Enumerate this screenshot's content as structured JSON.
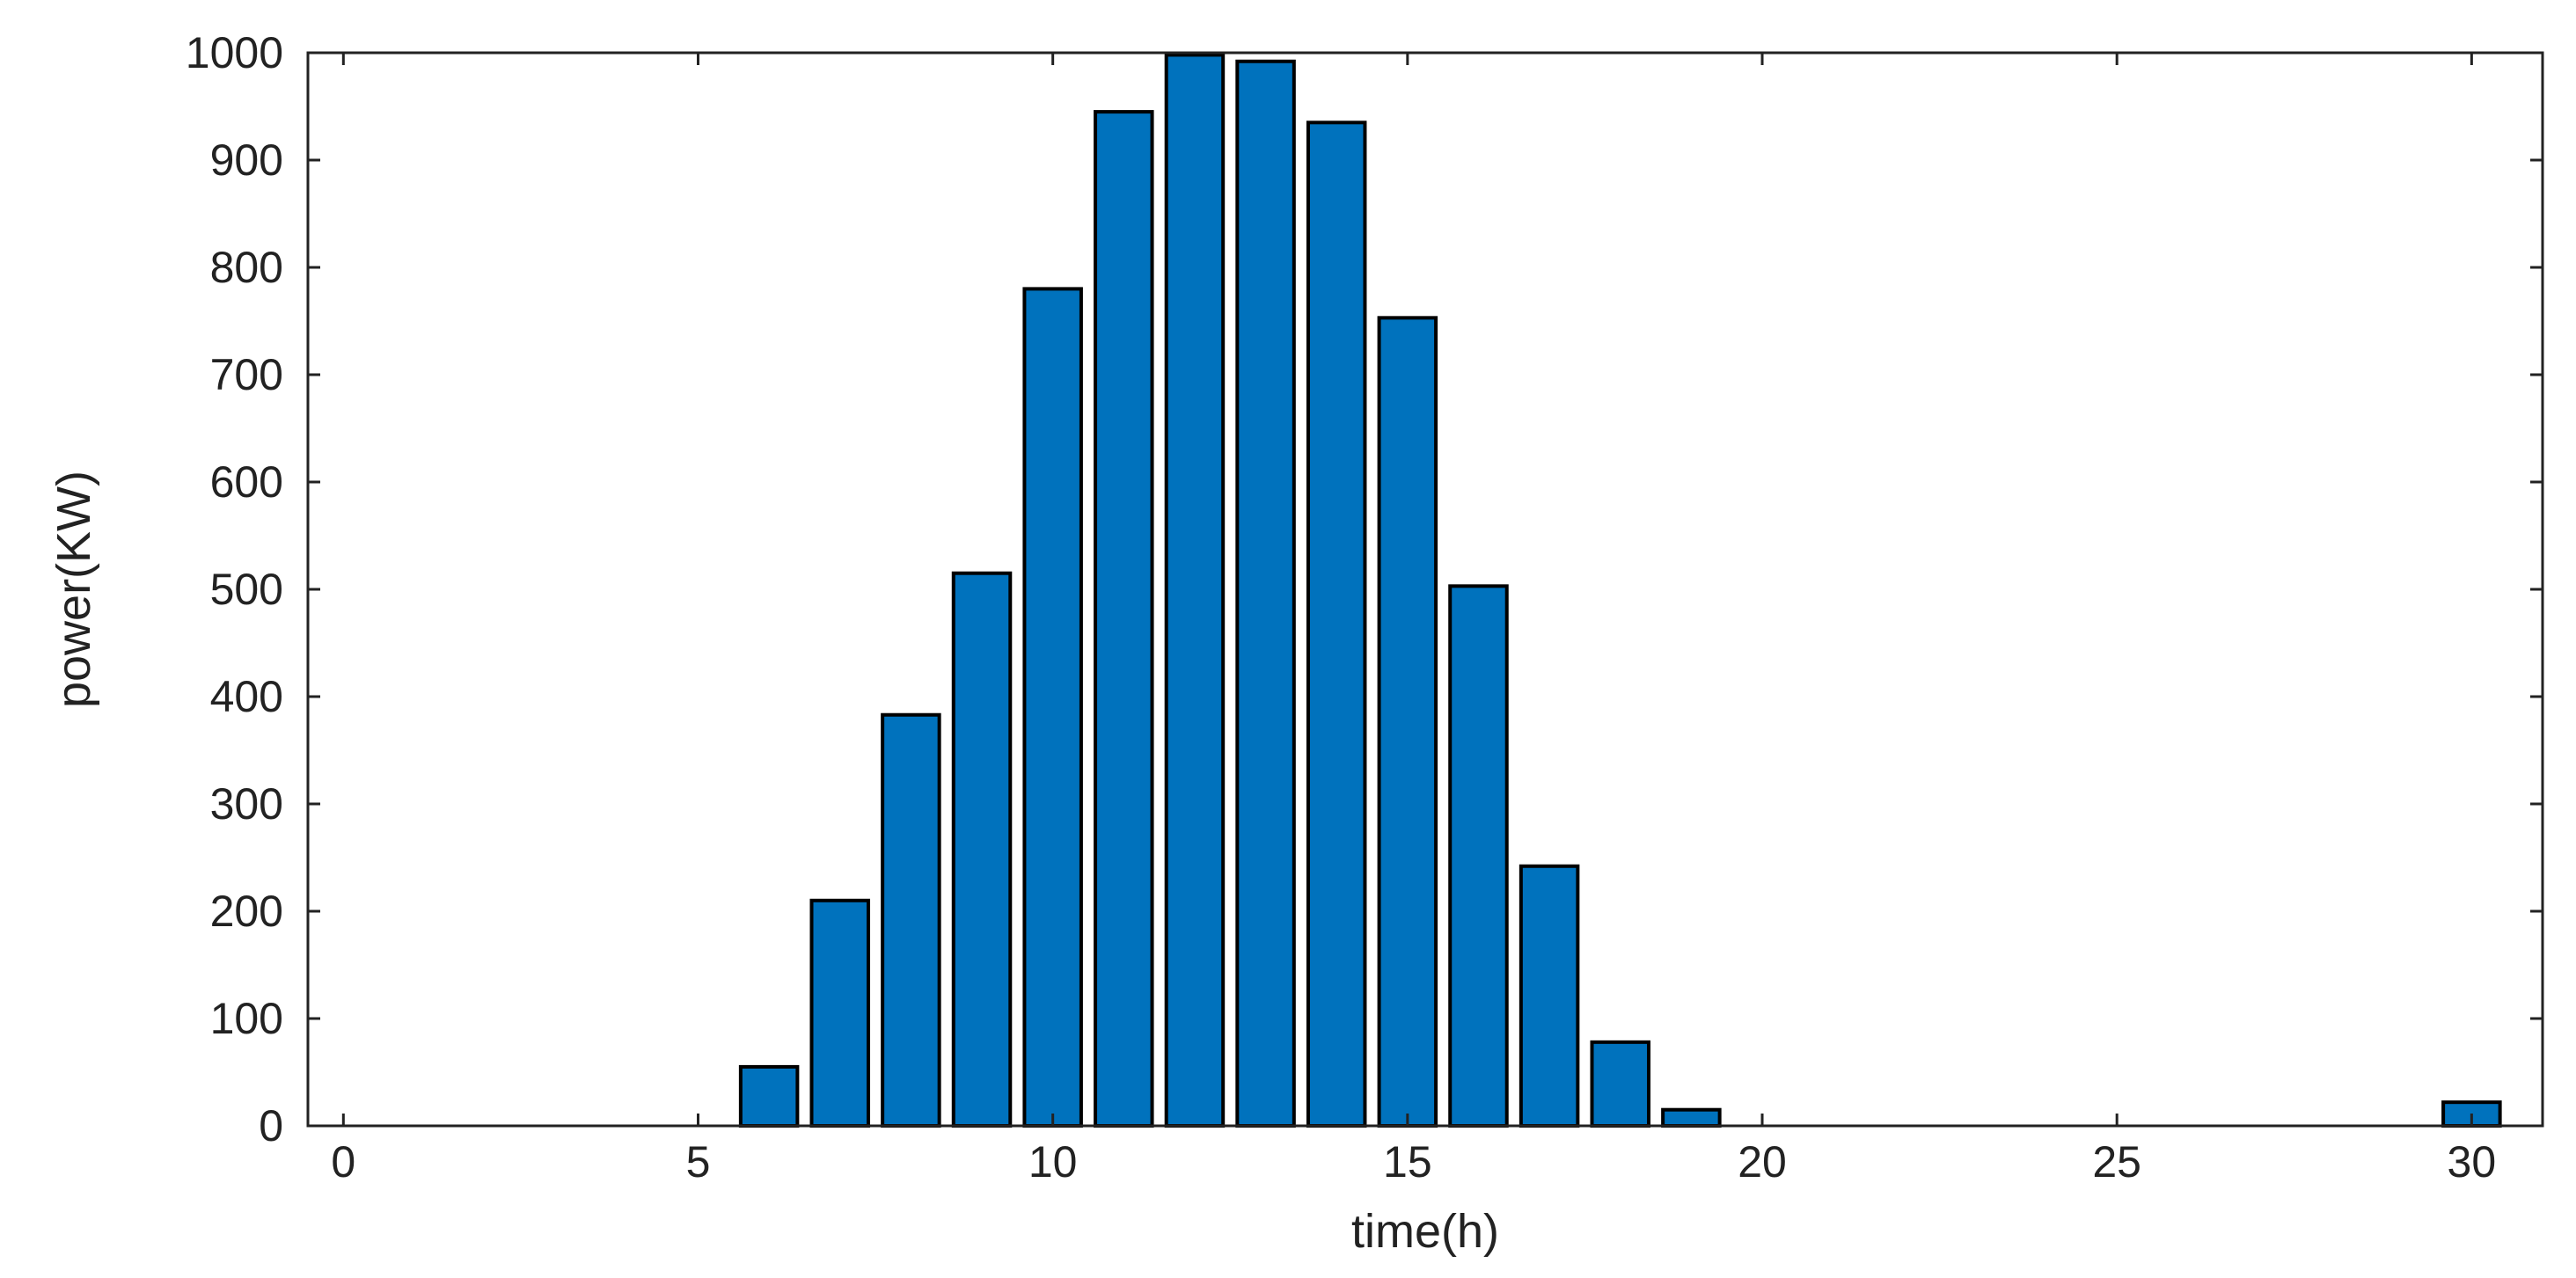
{
  "chart_data": {
    "type": "bar",
    "title": "",
    "xlabel": "time(h)",
    "ylabel": "power(KW)",
    "xlim": [
      -0.5,
      31
    ],
    "ylim": [
      0,
      1000
    ],
    "xticks": [
      0,
      5,
      10,
      15,
      20,
      25,
      30
    ],
    "yticks": [
      0,
      100,
      200,
      300,
      400,
      500,
      600,
      700,
      800,
      900,
      1000
    ],
    "grid": false,
    "bar_color": "#0072BD",
    "bar_edge_color": "#000000",
    "x": [
      1,
      2,
      3,
      4,
      5,
      6,
      7,
      8,
      9,
      10,
      11,
      12,
      13,
      14,
      15,
      16,
      17,
      18,
      19,
      20,
      21,
      22,
      23,
      24,
      25,
      26,
      27,
      28,
      29,
      30
    ],
    "values": [
      0,
      0,
      0,
      0,
      0,
      55,
      210,
      383,
      515,
      780,
      945,
      998,
      992,
      935,
      753,
      503,
      242,
      78,
      15,
      0,
      0,
      0,
      0,
      0,
      0,
      0,
      0,
      0,
      0,
      22
    ]
  }
}
